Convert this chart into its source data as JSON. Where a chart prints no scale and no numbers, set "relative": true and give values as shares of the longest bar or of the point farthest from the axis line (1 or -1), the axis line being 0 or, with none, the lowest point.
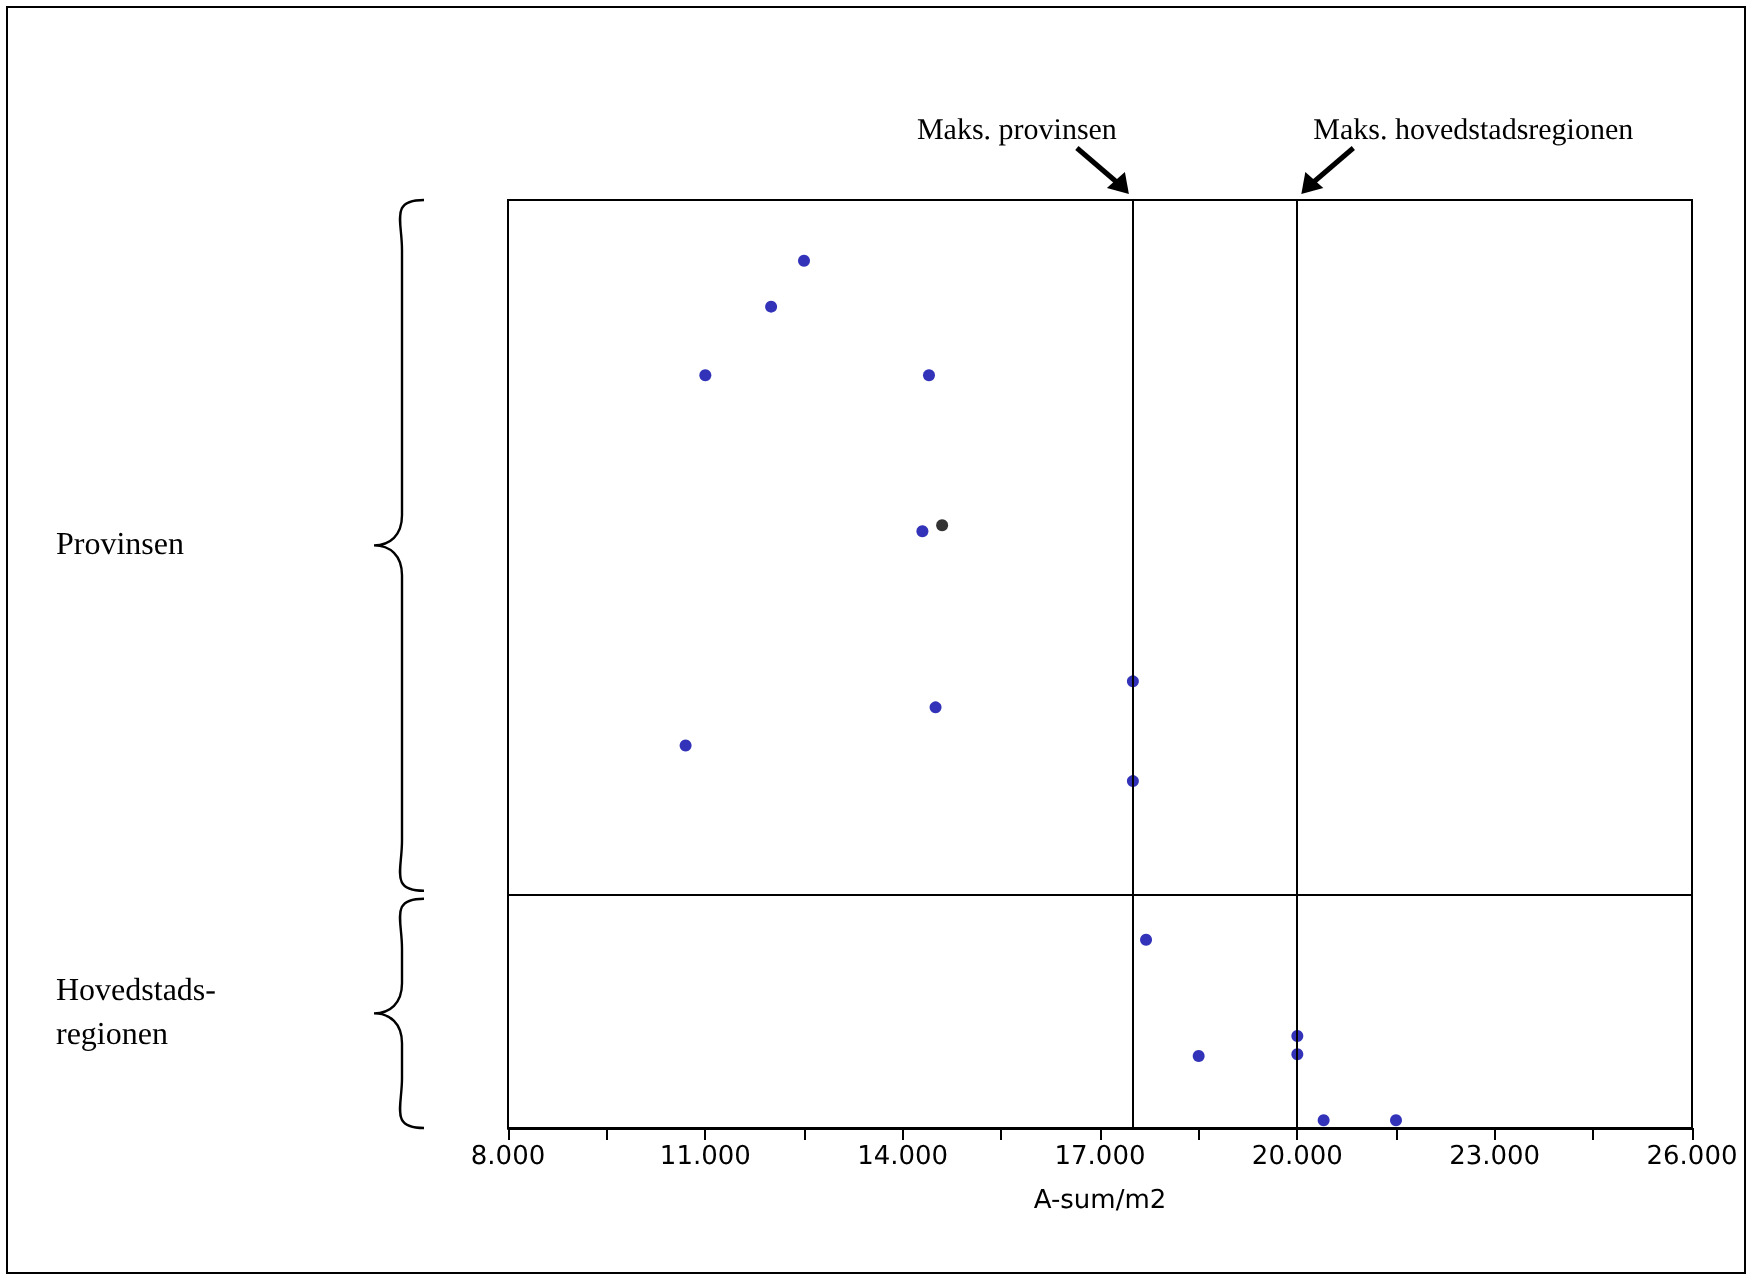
{
  "chart_data": {
    "type": "scatter",
    "relative": true,
    "xlabel": "A-sum/m2",
    "x": [
      12500,
      12000,
      11000,
      14400,
      14300,
      14600,
      14500,
      17500,
      10700,
      17500,
      17700,
      20000,
      20000,
      18500,
      20400,
      21500
    ],
    "values": [
      1,
      0.947,
      0.868,
      0.868,
      0.688,
      0.695,
      0.485,
      0.515,
      0.441,
      0.4,
      0.217,
      0.106,
      0.085,
      0.083,
      0.009,
      0.009
    ],
    "colors": [
      "#0000a8",
      "#0000a8",
      "#0000a8",
      "#0000a8",
      "#0000a8",
      "#000000",
      "#0000a8",
      "#0000a8",
      "#0000a8",
      "#0000a8",
      "#0000a8",
      "#0000a8",
      "#0000a8",
      "#0000a8",
      "#0000a8",
      "#0000a8"
    ],
    "marker": "circle",
    "grid": false,
    "tick_labels": "x",
    "xlim": [
      8000,
      26000
    ],
    "xticks": [
      {
        "value": 8000,
        "label": "8.000"
      },
      {
        "value": 9500,
        "label": null
      },
      {
        "value": 11000,
        "label": "11.000"
      },
      {
        "value": 12500,
        "label": null
      },
      {
        "value": 14000,
        "label": "14.000"
      },
      {
        "value": 15500,
        "label": null
      },
      {
        "value": 17000,
        "label": "17.000"
      },
      {
        "value": 18500,
        "label": null
      },
      {
        "value": 20000,
        "label": "20.000"
      },
      {
        "value": 21500,
        "label": null
      },
      {
        "value": 23000,
        "label": "23.000"
      },
      {
        "value": 24500,
        "label": null
      },
      {
        "value": 26000,
        "label": "26.000"
      }
    ],
    "ref_lines": [
      {
        "axis": "x",
        "value": 17500,
        "label": "Maks. provinsen",
        "color": "#000000"
      },
      {
        "axis": "x",
        "value": 20000,
        "label": "Maks. hovedstadsregionen",
        "color": "#000000"
      },
      {
        "axis": "y",
        "value": 0.269,
        "color": "#000000"
      }
    ],
    "annotations": [
      "Provinsen",
      "Hovedstads-\nregionen"
    ]
  }
}
